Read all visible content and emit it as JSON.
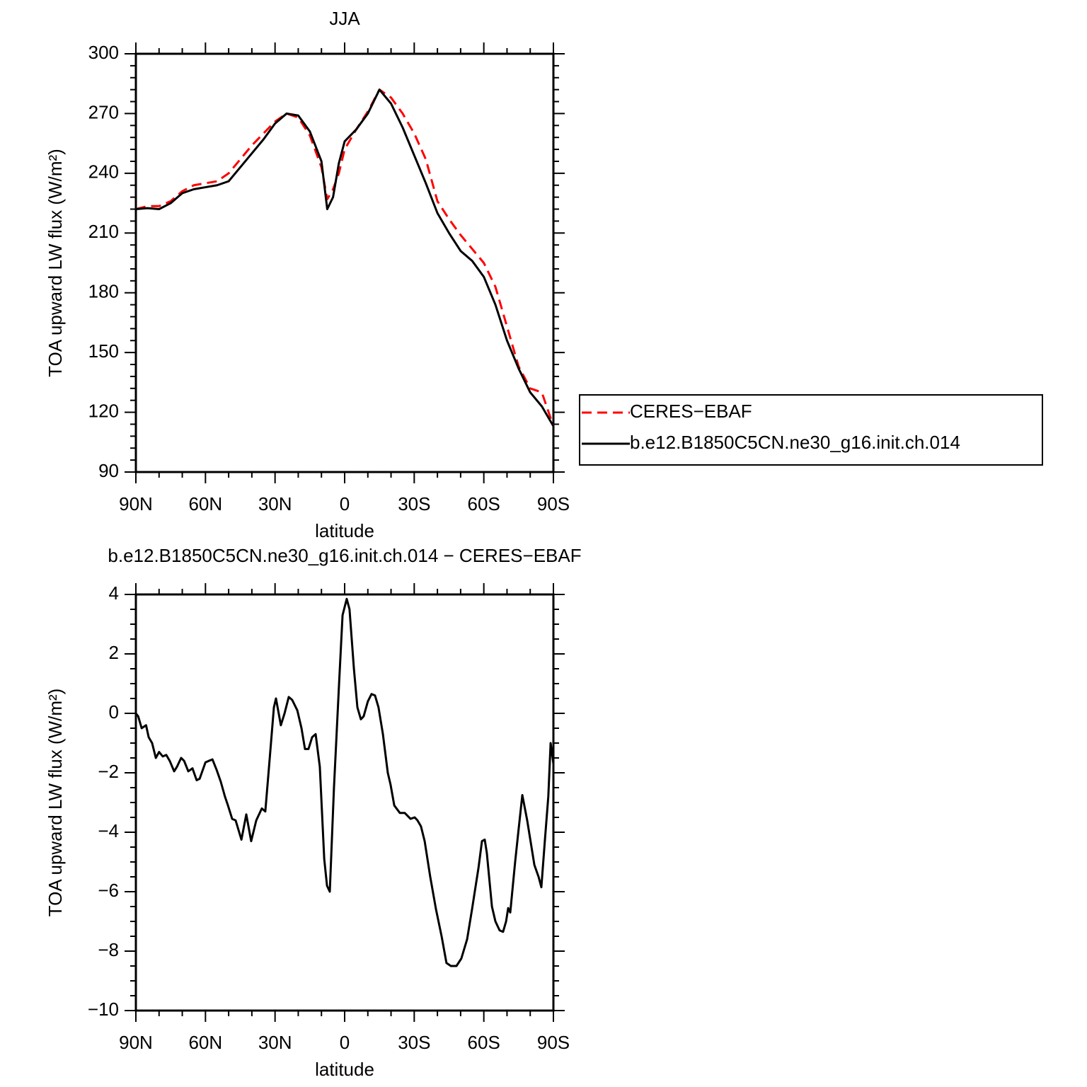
{
  "chart_data": [
    {
      "type": "line",
      "title": "JJA",
      "x_label": "latitude",
      "y_label": "TOA upward LW flux (W/m²)",
      "x": [
        90,
        85,
        80,
        75,
        70,
        65,
        60,
        55,
        50,
        45,
        40,
        35,
        30,
        25,
        20,
        15,
        10,
        7.5,
        5,
        2.5,
        0,
        -5,
        -10,
        -15,
        -20,
        -25,
        -30,
        -35,
        -40,
        -45,
        -50,
        -55,
        -60,
        -65,
        -70,
        -75,
        -80,
        -85,
        -90
      ],
      "series": [
        {
          "name": "CERES−EBAF",
          "color": "#ff0000",
          "dash": true,
          "values": [
            222,
            223.5,
            223.5,
            226,
            231,
            234,
            235,
            236,
            240,
            247,
            254,
            260,
            266,
            270,
            268,
            259,
            243,
            227,
            232,
            240,
            252,
            262,
            271,
            282,
            278,
            270,
            260,
            247,
            226,
            217,
            209,
            202,
            195,
            183,
            163,
            143,
            132,
            130,
            113
          ]
        },
        {
          "name": "b.e12.B1850C5CN.ne30_g16.init.ch.014",
          "color": "#000000",
          "dash": false,
          "values": [
            222,
            222.5,
            222,
            225,
            230,
            232,
            233,
            234,
            236,
            243,
            250,
            257,
            265,
            270,
            269,
            261,
            246,
            222,
            228,
            245,
            256,
            262,
            270,
            282,
            275,
            263,
            249,
            235,
            220,
            210,
            201,
            196,
            188,
            174,
            156,
            142,
            130,
            123,
            113
          ]
        }
      ],
      "xlim": [
        90,
        -90
      ],
      "xticks": [
        {
          "value": 90,
          "label": "90N"
        },
        {
          "value": 60,
          "label": "60N"
        },
        {
          "value": 30,
          "label": "30N"
        },
        0,
        {
          "value": -30,
          "label": "30S"
        },
        {
          "value": -60,
          "label": "60S"
        },
        {
          "value": -90,
          "label": "90S"
        }
      ],
      "ylim": [
        90,
        300
      ],
      "yticks": [
        90,
        120,
        150,
        180,
        210,
        240,
        270,
        300
      ]
    },
    {
      "type": "line",
      "title": "b.e12.B1850C5CN.ne30_g16.init.ch.014 − CERES−EBAF",
      "x_label": "latitude",
      "y_label": "TOA upward LW flux (W/m²)",
      "x": [
        90,
        89,
        87.5,
        85.6,
        84.5,
        83,
        81.4,
        80,
        78.4,
        76.9,
        75.4,
        73.5,
        72.3,
        70.5,
        69.2,
        67.4,
        65.6,
        63.8,
        62.5,
        60,
        58.6,
        57,
        55.2,
        53.4,
        51.6,
        50.3,
        48.5,
        47,
        44.5,
        42.4,
        40.3,
        38.1,
        35.7,
        34.2,
        32.6,
        30.5,
        29.6,
        27.5,
        25.9,
        24.1,
        22.6,
        20.4,
        18.6,
        17.1,
        15.6,
        14,
        12.5,
        10.7,
        8.8,
        7.6,
        6.4,
        4.6,
        2.4,
        0.9,
        -0.9,
        -2.1,
        -4,
        -5.5,
        -7,
        -8.2,
        -10,
        -11.6,
        -13.1,
        -14.6,
        -16.5,
        -18.6,
        -19.8,
        -21.4,
        -23.8,
        -25.9,
        -28.4,
        -30.2,
        -31.4,
        -32.9,
        -34.5,
        -36.9,
        -39.4,
        -41.8,
        -43.9,
        -45.8,
        -48.2,
        -50.3,
        -52.8,
        -54.9,
        -57.7,
        -59.2,
        -60.4,
        -61.3,
        -63.5,
        -65,
        -66.8,
        -68.3,
        -69.6,
        -70.5,
        -71.4,
        -73.5,
        -75,
        -76.6,
        -78.7,
        -81.8,
        -83.6,
        -84.8,
        -86.3,
        -87.8,
        -88.8,
        -90
      ],
      "values": [
        0,
        -0.1,
        -0.5,
        -0.4,
        -0.8,
        -1,
        -1.5,
        -1.3,
        -1.45,
        -1.4,
        -1.6,
        -1.95,
        -1.8,
        -1.5,
        -1.6,
        -1.95,
        -1.85,
        -2.25,
        -2.2,
        -1.65,
        -1.6,
        -1.55,
        -1.9,
        -2.3,
        -2.8,
        -3.1,
        -3.55,
        -3.6,
        -4.25,
        -3.4,
        -4.3,
        -3.6,
        -3.2,
        -3.3,
        -1.8,
        0.2,
        0.5,
        -0.4,
        0,
        0.55,
        0.45,
        0.1,
        -0.5,
        -1.2,
        -1.2,
        -0.8,
        -0.7,
        -1.8,
        -4.9,
        -5.8,
        -6,
        -2.5,
        1,
        3.3,
        3.85,
        3.5,
        1.5,
        0.2,
        -0.2,
        -0.1,
        0.4,
        0.65,
        0.6,
        0.2,
        -0.7,
        -2,
        -2.4,
        -3.1,
        -3.35,
        -3.35,
        -3.55,
        -3.5,
        -3.6,
        -3.8,
        -4.3,
        -5.5,
        -6.6,
        -7.5,
        -8.4,
        -8.5,
        -8.5,
        -8.25,
        -7.6,
        -6.6,
        -5.2,
        -4.3,
        -4.25,
        -4.7,
        -6.5,
        -7,
        -7.3,
        -7.35,
        -7,
        -6.55,
        -6.7,
        -5,
        -3.9,
        -2.75,
        -3.6,
        -5.1,
        -5.5,
        -5.85,
        -4.3,
        -2.8,
        -1,
        -1.7
      ],
      "color": "#000000",
      "xlim": [
        90,
        -90
      ],
      "xticks": [
        {
          "value": 90,
          "label": "90N"
        },
        {
          "value": 60,
          "label": "60N"
        },
        {
          "value": 30,
          "label": "30N"
        },
        0,
        {
          "value": -30,
          "label": "30S"
        },
        {
          "value": -60,
          "label": "60S"
        },
        {
          "value": -90,
          "label": "90S"
        }
      ],
      "ylim": [
        -10,
        4
      ],
      "yticks": [
        {
          "value": -10,
          "label": "−10"
        },
        {
          "value": -8,
          "label": "−8"
        },
        {
          "value": -6,
          "label": "−6"
        },
        {
          "value": -4,
          "label": "−4"
        },
        {
          "value": -2,
          "label": "−2"
        },
        0,
        2,
        4
      ]
    }
  ]
}
